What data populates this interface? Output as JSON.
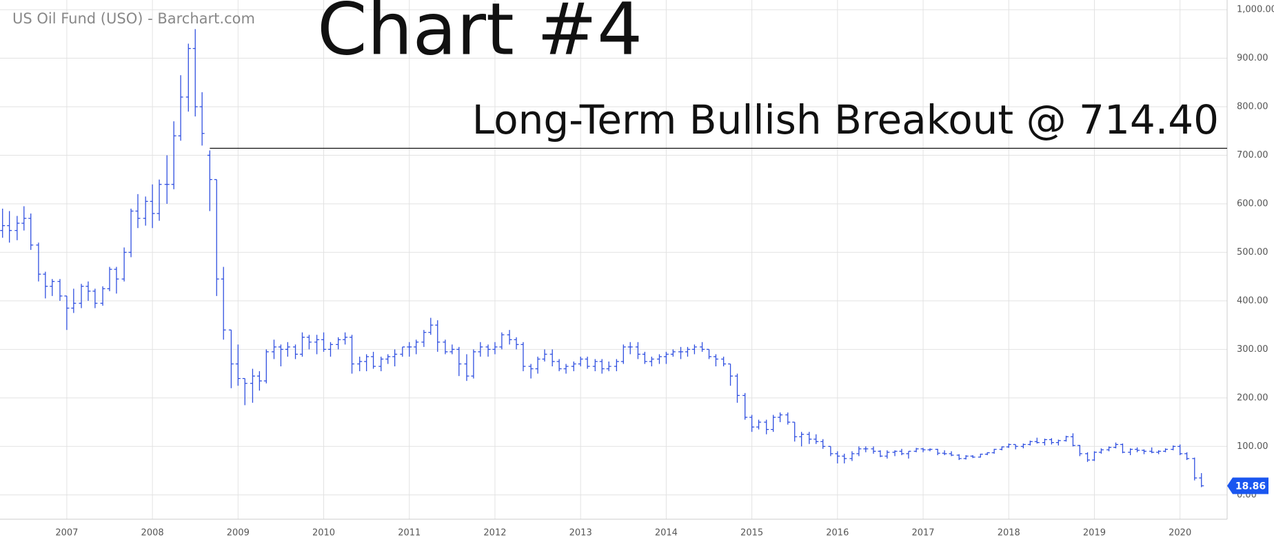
{
  "chart_data": {
    "type": "ohlc",
    "title": "US Oil Fund (USO) - Barchart.com",
    "headline": "Chart #4",
    "annotation": "Long-Term Bullish Breakout @ 714.40",
    "breakout_level": 714.4,
    "breakout_start": 2008.67,
    "last_price": 18.86,
    "color": "#2f4fe0",
    "grid": true,
    "xlim": [
      2006.22,
      2020.55
    ],
    "xticks": [
      2007,
      2008,
      2009,
      2010,
      2011,
      2012,
      2013,
      2014,
      2015,
      2016,
      2017,
      2018,
      2019,
      2020
    ],
    "ylim": [
      -50,
      1020
    ],
    "yticks": [
      {
        "value": 0,
        "label": "0.00"
      },
      {
        "value": 100,
        "label": "100.00"
      },
      {
        "value": 200,
        "label": "200.00"
      },
      {
        "value": 300,
        "label": "300.00"
      },
      {
        "value": 400,
        "label": "400.00"
      },
      {
        "value": 500,
        "label": "500.00"
      },
      {
        "value": 600,
        "label": "600.00"
      },
      {
        "value": 700,
        "label": "700.00"
      },
      {
        "value": 800,
        "label": "800.00"
      },
      {
        "value": 900,
        "label": "900.00"
      },
      {
        "value": 1000,
        "label": "1,000.00"
      }
    ],
    "x": [
      2006.25,
      2006.33,
      2006.42,
      2006.5,
      2006.58,
      2006.67,
      2006.75,
      2006.83,
      2006.92,
      2007,
      2007.08,
      2007.17,
      2007.25,
      2007.33,
      2007.42,
      2007.5,
      2007.58,
      2007.67,
      2007.75,
      2007.83,
      2007.92,
      2008,
      2008.08,
      2008.17,
      2008.25,
      2008.33,
      2008.42,
      2008.5,
      2008.58,
      2008.67,
      2008.75,
      2008.83,
      2008.92,
      2009,
      2009.08,
      2009.17,
      2009.25,
      2009.33,
      2009.42,
      2009.5,
      2009.58,
      2009.67,
      2009.75,
      2009.83,
      2009.92,
      2010,
      2010.08,
      2010.17,
      2010.25,
      2010.33,
      2010.42,
      2010.5,
      2010.58,
      2010.67,
      2010.75,
      2010.83,
      2010.92,
      2011,
      2011.08,
      2011.17,
      2011.25,
      2011.33,
      2011.42,
      2011.5,
      2011.58,
      2011.67,
      2011.75,
      2011.83,
      2011.92,
      2012,
      2012.08,
      2012.17,
      2012.25,
      2012.33,
      2012.42,
      2012.5,
      2012.58,
      2012.67,
      2012.75,
      2012.83,
      2012.92,
      2013,
      2013.08,
      2013.17,
      2013.25,
      2013.33,
      2013.42,
      2013.5,
      2013.58,
      2013.67,
      2013.75,
      2013.83,
      2013.92,
      2014,
      2014.08,
      2014.17,
      2014.25,
      2014.33,
      2014.42,
      2014.5,
      2014.58,
      2014.67,
      2014.75,
      2014.83,
      2014.92,
      2015,
      2015.08,
      2015.17,
      2015.25,
      2015.33,
      2015.42,
      2015.5,
      2015.58,
      2015.67,
      2015.75,
      2015.83,
      2015.92,
      2016,
      2016.08,
      2016.17,
      2016.25,
      2016.33,
      2016.42,
      2016.5,
      2016.58,
      2016.67,
      2016.75,
      2016.83,
      2016.92,
      2017,
      2017.08,
      2017.17,
      2017.25,
      2017.33,
      2017.42,
      2017.5,
      2017.58,
      2017.67,
      2017.75,
      2017.83,
      2017.92,
      2018,
      2018.08,
      2018.17,
      2018.25,
      2018.33,
      2018.42,
      2018.5,
      2018.58,
      2018.67,
      2018.75,
      2018.83,
      2018.92,
      2019,
      2019.08,
      2019.17,
      2019.25,
      2019.33,
      2019.42,
      2019.5,
      2019.58,
      2019.67,
      2019.75,
      2019.83,
      2019.92,
      2020,
      2020.08,
      2020.17,
      2020.25
    ],
    "open": [
      545,
      555,
      545,
      560,
      570,
      515,
      455,
      430,
      440,
      410,
      385,
      395,
      430,
      420,
      395,
      425,
      465,
      445,
      500,
      585,
      570,
      605,
      580,
      640,
      640,
      740,
      820,
      920,
      800,
      700,
      650,
      445,
      340,
      270,
      240,
      230,
      245,
      235,
      295,
      305,
      300,
      305,
      290,
      325,
      315,
      320,
      300,
      310,
      320,
      325,
      270,
      275,
      285,
      265,
      280,
      285,
      290,
      305,
      305,
      315,
      335,
      350,
      315,
      295,
      300,
      270,
      245,
      295,
      305,
      300,
      305,
      330,
      320,
      310,
      265,
      260,
      280,
      290,
      275,
      260,
      265,
      270,
      280,
      265,
      275,
      260,
      265,
      275,
      305,
      305,
      290,
      275,
      280,
      285,
      290,
      295,
      295,
      300,
      305,
      300,
      285,
      280,
      270,
      245,
      205,
      160,
      140,
      150,
      135,
      160,
      165,
      150,
      120,
      125,
      115,
      110,
      100,
      85,
      80,
      75,
      85,
      95,
      95,
      90,
      80,
      88,
      90,
      85,
      90,
      95,
      93,
      94,
      86,
      85,
      82,
      75,
      80,
      78,
      84,
      87,
      94,
      99,
      104,
      100,
      104,
      110,
      108,
      114,
      108,
      112,
      120,
      102,
      85,
      72,
      88,
      93,
      98,
      104,
      88,
      94,
      92,
      90,
      88,
      90,
      94,
      100,
      85,
      75,
      35
    ],
    "high": [
      590,
      585,
      575,
      595,
      580,
      520,
      460,
      445,
      445,
      410,
      425,
      435,
      440,
      425,
      430,
      470,
      470,
      510,
      590,
      620,
      615,
      640,
      650,
      700,
      770,
      865,
      930,
      960,
      830,
      710,
      650,
      470,
      340,
      310,
      240,
      260,
      255,
      300,
      320,
      310,
      315,
      310,
      335,
      330,
      330,
      335,
      315,
      325,
      335,
      330,
      285,
      290,
      295,
      285,
      290,
      300,
      305,
      315,
      320,
      340,
      365,
      360,
      320,
      310,
      305,
      290,
      300,
      315,
      310,
      315,
      335,
      340,
      325,
      315,
      270,
      285,
      300,
      300,
      280,
      270,
      275,
      285,
      285,
      280,
      280,
      275,
      280,
      310,
      315,
      315,
      295,
      285,
      290,
      295,
      300,
      305,
      305,
      310,
      315,
      300,
      290,
      285,
      270,
      250,
      210,
      165,
      155,
      155,
      165,
      170,
      170,
      150,
      130,
      130,
      125,
      115,
      100,
      90,
      85,
      90,
      100,
      100,
      100,
      92,
      92,
      92,
      95,
      90,
      97,
      97,
      96,
      95,
      92,
      90,
      84,
      82,
      82,
      85,
      88,
      95,
      100,
      106,
      104,
      106,
      112,
      118,
      116,
      117,
      114,
      122,
      127,
      103,
      88,
      90,
      96,
      100,
      108,
      106,
      96,
      98,
      94,
      98,
      92,
      96,
      102,
      104,
      88,
      77,
      45
    ],
    "low": [
      530,
      520,
      525,
      545,
      505,
      440,
      405,
      410,
      400,
      340,
      375,
      385,
      400,
      385,
      390,
      420,
      415,
      440,
      490,
      550,
      555,
      550,
      565,
      600,
      630,
      730,
      790,
      780,
      720,
      585,
      410,
      320,
      220,
      225,
      185,
      190,
      215,
      230,
      280,
      265,
      285,
      280,
      285,
      300,
      290,
      295,
      285,
      300,
      310,
      250,
      255,
      255,
      260,
      255,
      270,
      265,
      285,
      285,
      290,
      305,
      330,
      295,
      290,
      290,
      245,
      235,
      240,
      285,
      285,
      290,
      300,
      310,
      300,
      255,
      240,
      250,
      275,
      265,
      255,
      250,
      255,
      265,
      260,
      255,
      250,
      255,
      255,
      270,
      290,
      280,
      270,
      265,
      270,
      270,
      285,
      280,
      285,
      290,
      295,
      280,
      265,
      265,
      225,
      190,
      155,
      130,
      135,
      125,
      130,
      150,
      145,
      110,
      100,
      105,
      105,
      95,
      80,
      65,
      65,
      70,
      80,
      88,
      85,
      78,
      75,
      80,
      82,
      75,
      88,
      88,
      90,
      82,
      82,
      80,
      72,
      73,
      76,
      77,
      82,
      85,
      92,
      97,
      94,
      96,
      102,
      106,
      102,
      104,
      102,
      110,
      100,
      80,
      68,
      70,
      85,
      90,
      96,
      86,
      82,
      88,
      84,
      86,
      84,
      88,
      92,
      82,
      72,
      30,
      16
    ],
    "close": [
      555,
      545,
      560,
      570,
      515,
      455,
      430,
      440,
      410,
      385,
      395,
      430,
      420,
      395,
      425,
      465,
      445,
      500,
      585,
      570,
      605,
      580,
      640,
      640,
      740,
      820,
      920,
      800,
      745,
      650,
      445,
      340,
      270,
      240,
      230,
      245,
      235,
      295,
      305,
      300,
      305,
      290,
      325,
      315,
      320,
      300,
      310,
      320,
      325,
      270,
      275,
      285,
      265,
      280,
      285,
      290,
      305,
      305,
      315,
      335,
      350,
      315,
      295,
      300,
      270,
      245,
      295,
      305,
      300,
      305,
      330,
      320,
      310,
      265,
      260,
      280,
      290,
      275,
      260,
      265,
      270,
      280,
      265,
      275,
      260,
      265,
      275,
      305,
      305,
      290,
      275,
      280,
      285,
      290,
      295,
      295,
      300,
      305,
      300,
      285,
      280,
      270,
      245,
      205,
      160,
      140,
      150,
      135,
      160,
      165,
      150,
      120,
      125,
      115,
      110,
      100,
      85,
      80,
      75,
      85,
      95,
      95,
      90,
      80,
      88,
      90,
      85,
      90,
      95,
      93,
      94,
      86,
      85,
      82,
      75,
      80,
      78,
      84,
      87,
      94,
      99,
      104,
      100,
      104,
      110,
      108,
      114,
      108,
      112,
      120,
      102,
      85,
      72,
      88,
      93,
      98,
      104,
      88,
      94,
      92,
      90,
      88,
      90,
      94,
      100,
      85,
      75,
      35,
      18.86
    ]
  }
}
